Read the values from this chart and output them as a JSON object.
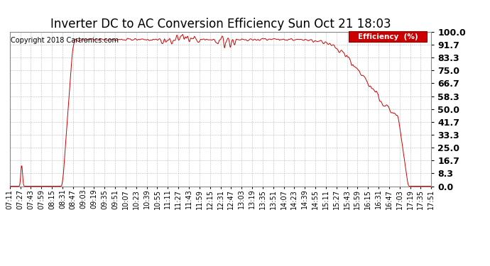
{
  "title": "Inverter DC to AC Conversion Efficiency Sun Oct 21 18:03",
  "copyright": "Copyright 2018 Cartronics.com",
  "legend_label": "Efficiency  (%)",
  "legend_bg": "#cc0000",
  "legend_fg": "#ffffff",
  "line_color": "#cc0000",
  "bg_color": "#ffffff",
  "plot_bg": "#ffffff",
  "grid_color": "#bbbbbb",
  "ylim": [
    0.0,
    100.0
  ],
  "yticks": [
    0.0,
    8.3,
    16.7,
    25.0,
    33.3,
    41.7,
    50.0,
    58.3,
    66.7,
    75.0,
    83.3,
    91.7,
    100.0
  ],
  "xtick_labels": [
    "07:11",
    "07:27",
    "07:43",
    "07:59",
    "08:15",
    "08:31",
    "08:47",
    "09:03",
    "09:19",
    "09:35",
    "09:51",
    "10:07",
    "10:23",
    "10:39",
    "10:55",
    "11:11",
    "11:27",
    "11:43",
    "11:59",
    "12:15",
    "12:31",
    "12:47",
    "13:03",
    "13:19",
    "13:35",
    "13:51",
    "14:07",
    "14:23",
    "14:39",
    "14:55",
    "15:11",
    "15:27",
    "15:43",
    "15:59",
    "16:15",
    "16:31",
    "16:47",
    "17:03",
    "17:19",
    "17:35",
    "17:51"
  ],
  "title_fontsize": 12,
  "copyright_fontsize": 7,
  "axis_fontsize": 7,
  "yaxis_fontsize": 9
}
